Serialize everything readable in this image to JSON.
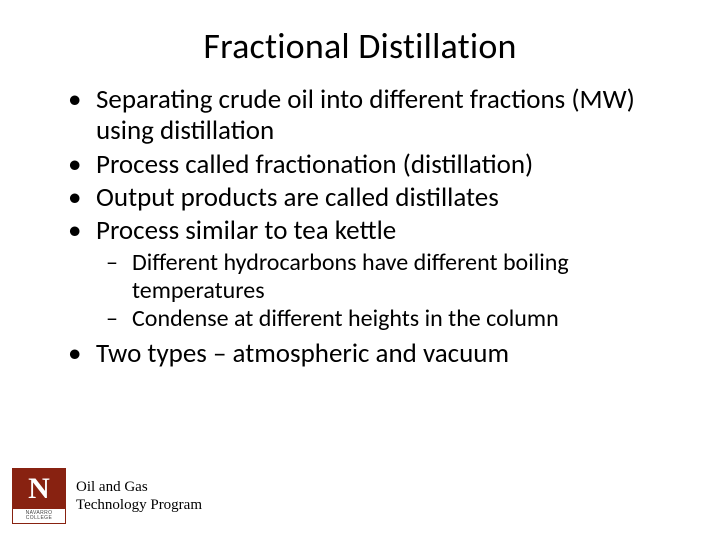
{
  "colors": {
    "background": "#ffffff",
    "text": "#000000",
    "logo_maroon": "#882211",
    "logo_sub": "#444444"
  },
  "typography": {
    "title_fontsize": 36,
    "bullet_fontsize": 27,
    "subbullet_fontsize": 24,
    "footer_fontsize": 15,
    "body_font": "Calibri",
    "footer_font": "Georgia"
  },
  "title": "Fractional Distillation",
  "bullets": [
    {
      "text": "Separating crude oil into different fractions (MW) using distillation"
    },
    {
      "text": "Process called fractionation (distillation)"
    },
    {
      "text": "Output products are called distillates"
    },
    {
      "text": "Process similar to tea kettle",
      "sub": [
        "Different hydrocarbons have different boiling temperatures",
        "Condense at different heights in the column"
      ]
    },
    {
      "text": "Two types – atmospheric and vacuum"
    }
  ],
  "logo": {
    "letter": "N",
    "line1": "NAVARRO",
    "line2": "COLLEGE"
  },
  "footer": {
    "line1": "Oil and Gas",
    "line2": "Technology Program"
  }
}
